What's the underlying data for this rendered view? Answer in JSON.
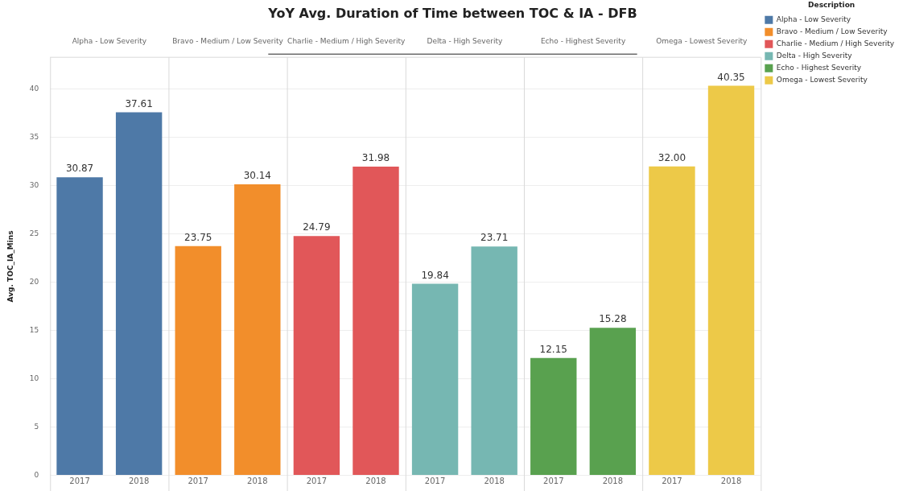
{
  "chart_data": {
    "type": "bar",
    "title": "YoY Avg. Duration of Time between TOC & IA - DFB",
    "ylabel": "Avg. TOC_IA_Mins",
    "legend_title": "Description",
    "legend": "right",
    "grid": "y",
    "categories": [
      "2017",
      "2018",
      "2017",
      "2018",
      "2017",
      "2018",
      "2017",
      "2018",
      "2017",
      "2018",
      "2017",
      "2018"
    ],
    "ylim": [
      0,
      43.3
    ],
    "yticks": [
      0,
      5,
      10,
      15,
      20,
      25,
      30,
      35,
      40
    ],
    "series": [
      {
        "name": "Alpha - Low Severity",
        "color": "#4e79a7",
        "values": [
          30.87,
          37.61,
          null,
          null,
          null,
          null,
          null,
          null,
          null,
          null,
          null,
          null
        ],
        "value_labels": [
          "30.87",
          "37.61",
          null,
          null,
          null,
          null,
          null,
          null,
          null,
          null,
          null,
          null
        ]
      },
      {
        "name": "Bravo - Medium / Low Severity",
        "color": "#f28e2b",
        "values": [
          null,
          null,
          23.75,
          30.14,
          null,
          null,
          null,
          null,
          null,
          null,
          null,
          null
        ],
        "value_labels": [
          null,
          null,
          "23.75",
          "30.14",
          null,
          null,
          null,
          null,
          null,
          null,
          null,
          null
        ]
      },
      {
        "name": "Charlie - Medium / High Severity",
        "color": "#e15759",
        "values": [
          null,
          null,
          null,
          null,
          24.79,
          31.98,
          null,
          null,
          null,
          null,
          null,
          null
        ],
        "value_labels": [
          null,
          null,
          null,
          null,
          "24.79",
          "31.98",
          null,
          null,
          null,
          null,
          null,
          null
        ]
      },
      {
        "name": "Delta - High Severity",
        "color": "#76b7b2",
        "values": [
          null,
          null,
          null,
          null,
          null,
          null,
          19.84,
          23.71,
          null,
          null,
          null,
          null
        ],
        "value_labels": [
          null,
          null,
          null,
          null,
          null,
          null,
          "19.84",
          "23.71",
          null,
          null,
          null,
          null
        ]
      },
      {
        "name": "Echo - Highest Severity",
        "color": "#59a14f",
        "values": [
          null,
          null,
          null,
          null,
          null,
          null,
          null,
          null,
          12.15,
          15.28,
          null,
          null
        ],
        "value_labels": [
          null,
          null,
          null,
          null,
          null,
          null,
          null,
          null,
          "12.15",
          "15.28",
          null,
          null
        ]
      },
      {
        "name": "Omega - Lowest Severity",
        "color": "#edc948",
        "values": [
          null,
          null,
          null,
          null,
          null,
          null,
          null,
          null,
          null,
          null,
          32.0,
          40.35
        ],
        "value_labels": [
          null,
          null,
          null,
          null,
          null,
          null,
          null,
          null,
          null,
          null,
          "32.00",
          "40.35"
        ]
      }
    ]
  }
}
